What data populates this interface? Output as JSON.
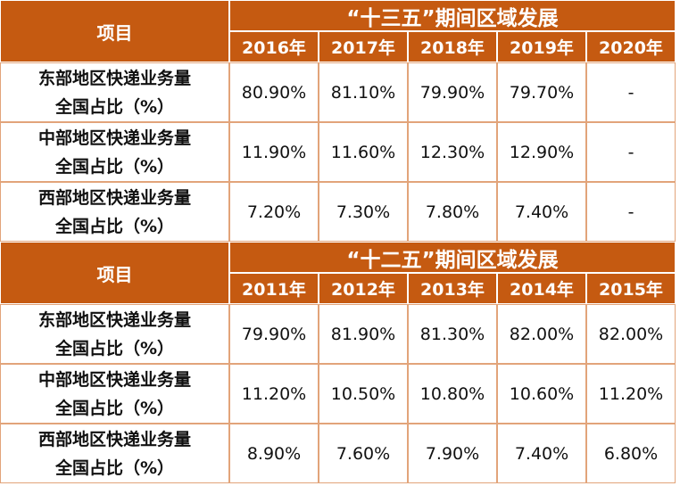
{
  "sections": [
    {
      "item_header": "项目",
      "title": "“十三五”期间区域发展",
      "years": [
        "2016年",
        "2017年",
        "2018年",
        "2019年",
        "2020年"
      ],
      "rows": [
        {
          "label": [
            "东部地区快递业务量",
            "全国占比（%）"
          ],
          "values": [
            "80.90%",
            "81.10%",
            "79.90%",
            "79.70%",
            "-"
          ]
        },
        {
          "label": [
            "中部地区快递业务量",
            "全国占比（%）"
          ],
          "values": [
            "11.90%",
            "11.60%",
            "12.30%",
            "12.90%",
            "-"
          ]
        },
        {
          "label": [
            "西部地区快递业务量",
            "全国占比（%）"
          ],
          "values": [
            "7.20%",
            "7.30%",
            "7.80%",
            "7.40%",
            "-"
          ]
        }
      ]
    },
    {
      "item_header": "项目",
      "title": "“十二五”期间区域发展",
      "years": [
        "2011年",
        "2012年",
        "2013年",
        "2014年",
        "2015年"
      ],
      "rows": [
        {
          "label": [
            "东部地区快递业务量",
            "全国占比（%）"
          ],
          "values": [
            "79.90%",
            "81.90%",
            "81.30%",
            "82.00%",
            "82.00%"
          ]
        },
        {
          "label": [
            "中部地区快递业务量",
            "全国占比（%）"
          ],
          "values": [
            "11.20%",
            "10.50%",
            "10.80%",
            "10.60%",
            "11.20%"
          ]
        },
        {
          "label": [
            "西部地区快递业务量",
            "全国占比（%）"
          ],
          "values": [
            "8.90%",
            "7.60%",
            "7.90%",
            "7.40%",
            "6.80%"
          ]
        }
      ]
    }
  ]
}
